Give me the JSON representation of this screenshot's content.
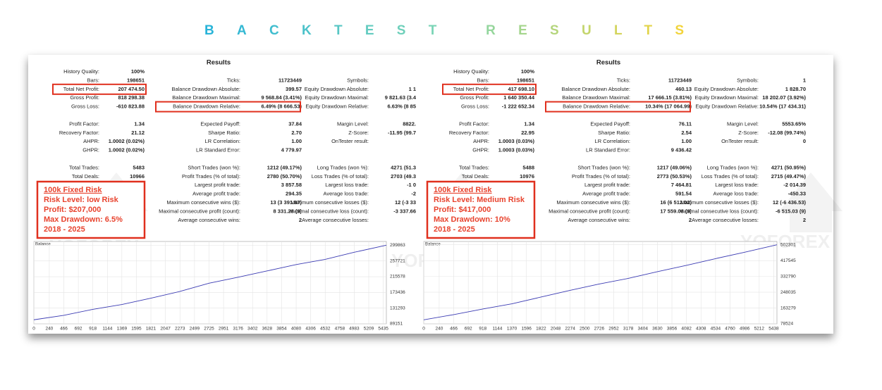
{
  "header": {
    "title": "BACKTEST RESULTS"
  },
  "watermark": "YOFOREX",
  "panels": [
    {
      "title": "Results",
      "columns": [
        [
          [
            {
              "label": "History Quality:",
              "value": "100%"
            },
            {
              "label": "Bars:",
              "value": "198651"
            },
            {
              "label": "Total Net Profit:",
              "value": "207 474.50",
              "highlight": true
            },
            {
              "label": "Gross Profit:",
              "value": "818 298.38"
            },
            {
              "label": "Gross Loss:",
              "value": "-610 823.88"
            }
          ],
          [
            {
              "label": "Profit Factor:",
              "value": "1.34"
            },
            {
              "label": "Recovery Factor:",
              "value": "21.12"
            },
            {
              "label": "AHPR:",
              "value": "1.0002 (0.02%)"
            },
            {
              "label": "GHPR:",
              "value": "1.0002 (0.02%)"
            }
          ],
          [
            {
              "label": "Total Trades:",
              "value": "5483"
            },
            {
              "label": "Total Deals:",
              "value": "10966"
            }
          ]
        ],
        [
          [
            {
              "label": "Ticks:",
              "value": "11723449"
            },
            {
              "label": "Balance Drawdown Absolute:",
              "value": "399.57"
            },
            {
              "label": "Balance Drawdown Maximal:",
              "value": "9 568.84 (3.41%)"
            },
            {
              "label": "Balance Drawdown Relative:",
              "value": "6.49% (8 666.53)",
              "highlight": true
            }
          ],
          [
            {
              "label": "Expected Payoff:",
              "value": "37.84"
            },
            {
              "label": "Sharpe Ratio:",
              "value": "2.70"
            },
            {
              "label": "LR Correlation:",
              "value": "1.00"
            },
            {
              "label": "LR Standard Error:",
              "value": "4 779.97"
            }
          ],
          [
            {
              "label": "Short Trades (won %):",
              "value": "1212 (49.17%)"
            },
            {
              "label": "Profit Trades (% of total):",
              "value": "2780 (50.70%)"
            },
            {
              "label": "Largest profit trade:",
              "value": "3 857.58"
            },
            {
              "label": "Average profit trade:",
              "value": "294.35"
            },
            {
              "label": "Maximum consecutive wins ($):",
              "value": "13 (3 391.87)"
            },
            {
              "label": "Maximal consecutive profit (count):",
              "value": "8 331.28 (9)"
            },
            {
              "label": "Average consecutive wins:",
              "value": "2"
            }
          ]
        ],
        [
          [
            {
              "label": "Symbols:"
            },
            {
              "label": "Equity Drawdown Absolute:",
              "value": "1 1"
            },
            {
              "label": "Equity Drawdown Maximal:",
              "value": "9 821.63 (3.4"
            },
            {
              "label": "Equity Drawdown Relative:",
              "value": "6.63% (8 85"
            }
          ],
          [
            {
              "label": "Margin Level:",
              "value": "8822."
            },
            {
              "label": "Z-Score:",
              "value": "-11.95 (99.7"
            },
            {
              "label": "OnTester result:"
            }
          ],
          [
            {
              "label": "Long Trades (won %):",
              "value": "4271 (51.3"
            },
            {
              "label": "Loss Trades (% of total):",
              "value": "2703 (49.3"
            },
            {
              "label": "Largest loss trade:",
              "value": "-1 0"
            },
            {
              "label": "Average loss trade:",
              "value": "-2"
            },
            {
              "label": "Maximum consecutive losses ($):",
              "value": "12 (-3 33"
            },
            {
              "label": "Maximal consecutive loss (count):",
              "value": "-3 337.66"
            },
            {
              "label": "Average consecutive losses:"
            }
          ]
        ]
      ],
      "note": [
        "100k Fixed Risk",
        "Risk Level: low Risk",
        "Profit: $207,000",
        "Max Drawdown: 6.5%",
        "2018 - 2025"
      ],
      "chart_data": {
        "type": "line",
        "label": "Balance",
        "color": "#3b3bb3",
        "grid": true,
        "x": [
          0,
          466,
          918,
          1369,
          1821,
          2273,
          2725,
          3176,
          3628,
          4080,
          4532,
          4983,
          5483
        ],
        "values": [
          100000,
          112000,
          128000,
          141000,
          158000,
          176000,
          198000,
          214000,
          231000,
          248000,
          262000,
          281000,
          300000
        ],
        "xlim": [
          0,
          5483
        ],
        "ylim": [
          89151,
          310000
        ],
        "xticks": [
          0,
          240,
          466,
          692,
          918,
          1144,
          1369,
          1595,
          1821,
          2047,
          2273,
          2499,
          2725,
          2951,
          3176,
          3402,
          3628,
          3854,
          4080,
          4306,
          4532,
          4758,
          4983,
          5209,
          5435
        ],
        "yticks": [
          89151,
          131293,
          173436,
          215578,
          257721,
          299863
        ]
      }
    },
    {
      "title": "Results",
      "columns": [
        [
          [
            {
              "label": "History Quality:",
              "value": "100%"
            },
            {
              "label": "Bars:",
              "value": "198651"
            },
            {
              "label": "Total Net Profit:",
              "value": "417 698.10",
              "highlight": true
            },
            {
              "label": "Gross Profit:",
              "value": "1 640 350.44"
            },
            {
              "label": "Gross Loss:",
              "value": "-1 222 652.34"
            }
          ],
          [
            {
              "label": "Profit Factor:",
              "value": "1.34"
            },
            {
              "label": "Recovery Factor:",
              "value": "22.95"
            },
            {
              "label": "AHPR:",
              "value": "1.0003 (0.03%)"
            },
            {
              "label": "GHPR:",
              "value": "1.0003 (0.03%)"
            }
          ],
          [
            {
              "label": "Total Trades:",
              "value": "5488"
            },
            {
              "label": "Total Deals:",
              "value": "10976"
            }
          ]
        ],
        [
          [
            {
              "label": "Ticks:",
              "value": "11723449"
            },
            {
              "label": "Balance Drawdown Absolute:",
              "value": "460.13"
            },
            {
              "label": "Balance Drawdown Maximal:",
              "value": "17 666.15 (3.81%)"
            },
            {
              "label": "Balance Drawdown Relative:",
              "value": "10.34% (17 064.99)",
              "highlight": true
            }
          ],
          [
            {
              "label": "Expected Payoff:",
              "value": "76.11"
            },
            {
              "label": "Sharpe Ratio:",
              "value": "2.54"
            },
            {
              "label": "LR Correlation:",
              "value": "1.00"
            },
            {
              "label": "LR Standard Error:",
              "value": "9 436.42"
            }
          ],
          [
            {
              "label": "Short Trades (won %):",
              "value": "1217 (49.06%)"
            },
            {
              "label": "Profit Trades (% of total):",
              "value": "2773 (50.53%)"
            },
            {
              "label": "Largest profit trade:",
              "value": "7 464.81"
            },
            {
              "label": "Average profit trade:",
              "value": "591.54"
            },
            {
              "label": "Maximum consecutive wins ($):",
              "value": "16 (6 512.02)"
            },
            {
              "label": "Maximal consecutive profit (count):",
              "value": "17 559.08 (9)"
            },
            {
              "label": "Average consecutive wins:",
              "value": "2"
            }
          ]
        ],
        [
          [
            {
              "label": "Symbols:",
              "value": "1"
            },
            {
              "label": "Equity Drawdown Absolute:",
              "value": "1 828.70"
            },
            {
              "label": "Equity Drawdown Maximal:",
              "value": "18 202.07 (3.92%)"
            },
            {
              "label": "Equity Drawdown Relative:",
              "value": "10.54% (17 434.31)"
            }
          ],
          [
            {
              "label": "Margin Level:",
              "value": "5553.65%"
            },
            {
              "label": "Z-Score:",
              "value": "-12.08 (99.74%)"
            },
            {
              "label": "OnTester result:",
              "value": "0"
            }
          ],
          [
            {
              "label": "Long Trades (won %):",
              "value": "4271 (50.95%)"
            },
            {
              "label": "Loss Trades (% of total):",
              "value": "2715 (49.47%)"
            },
            {
              "label": "Largest loss trade:",
              "value": "-2 014.39"
            },
            {
              "label": "Average loss trade:",
              "value": "-450.33"
            },
            {
              "label": "Maximum consecutive losses ($):",
              "value": "12 (-6 436.53)"
            },
            {
              "label": "Maximal consecutive loss (count):",
              "value": "-6 515.03 (9)"
            },
            {
              "label": "Average consecutive losses:",
              "value": "2"
            }
          ]
        ]
      ],
      "note": [
        "100k Fixed Risk",
        "Risk Level: Medium Risk",
        "Profit: $417,000",
        "Max Drawdown: 10%",
        "2018 - 2025"
      ],
      "chart_data": {
        "type": "line",
        "label": "Balance",
        "color": "#3b3bb3",
        "grid": true,
        "x": [
          0,
          466,
          918,
          1370,
          1822,
          2274,
          2726,
          3178,
          3630,
          4082,
          4534,
          4986,
          5488
        ],
        "values": [
          100000,
          128000,
          158000,
          186000,
          222000,
          258000,
          292000,
          322000,
          358000,
          392000,
          428000,
          462000,
          502301
        ],
        "xlim": [
          0,
          5488
        ],
        "ylim": [
          78524,
          520000
        ],
        "xticks": [
          0,
          240,
          466,
          692,
          918,
          1144,
          1370,
          1596,
          1822,
          2048,
          2274,
          2500,
          2726,
          2952,
          3178,
          3404,
          3630,
          3856,
          4082,
          4308,
          4534,
          4760,
          4986,
          5212,
          5438
        ],
        "yticks": [
          78524,
          163279,
          248035,
          332790,
          417545,
          502301
        ]
      }
    }
  ]
}
